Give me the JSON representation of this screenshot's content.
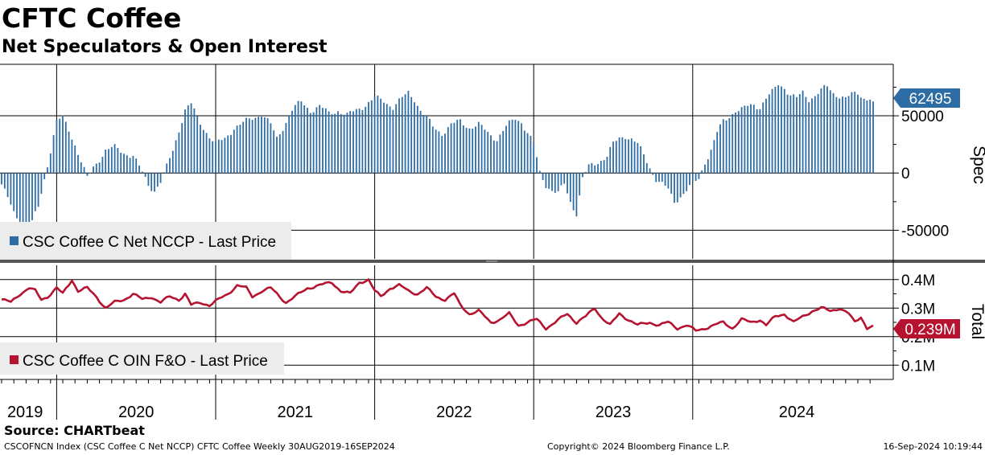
{
  "title": "CFTC Coffee",
  "subtitle": "Net Speculators & Open Interest",
  "source": "Source: CHARTbeat",
  "footer": {
    "left": "CSCOFNCN Index (CSC Coffee C Net NCCP) CFTC Coffee  Weekly 30AUG2019-16SEP2024",
    "center": "Copyright© 2024 Bloomberg Finance L.P.",
    "right": "16-Sep-2024 10:19:44"
  },
  "colors": {
    "spec": "#2e6ca4",
    "total": "#b5132f",
    "grid": "#000000",
    "legend_bg": "#ececec"
  },
  "chart_data": [
    {
      "type": "bar",
      "name": "spec",
      "title": "Spec",
      "legend": "CSC Coffee C Net NCCP - Last Price",
      "last_value_label": "62495",
      "ylim": [
        -75000,
        95000
      ],
      "yticks": [
        -50000,
        0,
        50000
      ],
      "ytick_labels": [
        "-50000",
        "0",
        "50000"
      ],
      "anchors": [
        [
          0,
          -10000
        ],
        [
          4,
          -35000
        ],
        [
          7,
          -45000
        ],
        [
          9,
          -50000
        ],
        [
          12,
          -30000
        ],
        [
          14,
          -5000
        ],
        [
          16,
          20000
        ],
        [
          18,
          45000
        ],
        [
          20,
          48000
        ],
        [
          22,
          38000
        ],
        [
          24,
          25000
        ],
        [
          26,
          10000
        ],
        [
          28,
          -5000
        ],
        [
          30,
          5000
        ],
        [
          34,
          20000
        ],
        [
          37,
          22000
        ],
        [
          40,
          18000
        ],
        [
          43,
          15000
        ],
        [
          45,
          5000
        ],
        [
          48,
          -10000
        ],
        [
          50,
          -15000
        ],
        [
          52,
          -8000
        ],
        [
          54,
          5000
        ],
        [
          56,
          20000
        ],
        [
          58,
          38000
        ],
        [
          60,
          55000
        ],
        [
          62,
          60000
        ],
        [
          64,
          48000
        ],
        [
          66,
          40000
        ],
        [
          68,
          32000
        ],
        [
          70,
          25000
        ],
        [
          73,
          30000
        ],
        [
          76,
          40000
        ],
        [
          78,
          42000
        ],
        [
          80,
          45000
        ],
        [
          82,
          48000
        ],
        [
          85,
          52000
        ],
        [
          88,
          42000
        ],
        [
          90,
          30000
        ],
        [
          92,
          40000
        ],
        [
          95,
          55000
        ],
        [
          98,
          62000
        ],
        [
          101,
          55000
        ],
        [
          104,
          58000
        ],
        [
          107,
          52000
        ],
        [
          110,
          55000
        ],
        [
          113,
          50000
        ],
        [
          116,
          55000
        ],
        [
          119,
          60000
        ],
        [
          122,
          65000
        ],
        [
          125,
          63000
        ],
        [
          128,
          58000
        ],
        [
          131,
          65000
        ],
        [
          133,
          70000
        ],
        [
          135,
          65000
        ],
        [
          137,
          55000
        ],
        [
          139,
          48000
        ],
        [
          141,
          40000
        ],
        [
          144,
          35000
        ],
        [
          147,
          42000
        ],
        [
          150,
          45000
        ],
        [
          153,
          40000
        ],
        [
          156,
          42000
        ],
        [
          159,
          35000
        ],
        [
          162,
          30000
        ],
        [
          165,
          40000
        ],
        [
          168,
          48000
        ],
        [
          170,
          45000
        ],
        [
          172,
          35000
        ],
        [
          174,
          25000
        ],
        [
          176,
          0
        ],
        [
          178,
          -10000
        ],
        [
          180,
          -15000
        ],
        [
          182,
          -18000
        ],
        [
          184,
          -10000
        ],
        [
          186,
          -25000
        ],
        [
          188,
          -35000
        ],
        [
          190,
          -5000
        ],
        [
          192,
          5000
        ],
        [
          195,
          10000
        ],
        [
          198,
          15000
        ],
        [
          200,
          25000
        ],
        [
          202,
          30000
        ],
        [
          204,
          33000
        ],
        [
          206,
          30000
        ],
        [
          208,
          25000
        ],
        [
          210,
          15000
        ],
        [
          212,
          5000
        ],
        [
          214,
          -5000
        ],
        [
          216,
          -10000
        ],
        [
          218,
          -15000
        ],
        [
          220,
          -25000
        ],
        [
          222,
          -20000
        ],
        [
          224,
          -15000
        ],
        [
          226,
          -10000
        ],
        [
          228,
          -5000
        ],
        [
          230,
          10000
        ],
        [
          232,
          20000
        ],
        [
          234,
          35000
        ],
        [
          236,
          45000
        ],
        [
          238,
          50000
        ],
        [
          240,
          55000
        ],
        [
          242,
          55000
        ],
        [
          244,
          58000
        ],
        [
          246,
          60000
        ],
        [
          248,
          58000
        ],
        [
          250,
          65000
        ],
        [
          252,
          70000
        ],
        [
          254,
          78000
        ],
        [
          256,
          75000
        ],
        [
          258,
          68000
        ],
        [
          260,
          65000
        ],
        [
          262,
          70000
        ],
        [
          264,
          65000
        ],
        [
          266,
          68000
        ],
        [
          268,
          72000
        ],
        [
          270,
          75000
        ],
        [
          272,
          70000
        ],
        [
          274,
          68000
        ],
        [
          276,
          65000
        ],
        [
          278,
          68000
        ],
        [
          280,
          70000
        ],
        [
          282,
          66000
        ],
        [
          284,
          65000
        ],
        [
          285,
          62495
        ]
      ]
    },
    {
      "type": "line",
      "name": "total",
      "title": "Total",
      "legend": "CSC Coffee C OIN F&O - Last Price",
      "last_value_label": "0.239M",
      "ylim": [
        0.05,
        0.45
      ],
      "yticks": [
        0.1,
        0.2,
        0.3,
        0.4
      ],
      "ytick_labels": [
        "0.1M",
        "0.2M",
        "0.3M",
        "0.4M"
      ],
      "anchors": [
        [
          0,
          0.33
        ],
        [
          3,
          0.32
        ],
        [
          6,
          0.35
        ],
        [
          9,
          0.37
        ],
        [
          11,
          0.36
        ],
        [
          13,
          0.33
        ],
        [
          15,
          0.34
        ],
        [
          18,
          0.37
        ],
        [
          20,
          0.35
        ],
        [
          23,
          0.4
        ],
        [
          25,
          0.36
        ],
        [
          28,
          0.37
        ],
        [
          31,
          0.34
        ],
        [
          34,
          0.3
        ],
        [
          37,
          0.32
        ],
        [
          40,
          0.33
        ],
        [
          43,
          0.35
        ],
        [
          46,
          0.33
        ],
        [
          49,
          0.34
        ],
        [
          52,
          0.32
        ],
        [
          55,
          0.34
        ],
        [
          58,
          0.33
        ],
        [
          60,
          0.35
        ],
        [
          62,
          0.31
        ],
        [
          65,
          0.32
        ],
        [
          68,
          0.31
        ],
        [
          71,
          0.33
        ],
        [
          74,
          0.35
        ],
        [
          77,
          0.38
        ],
        [
          80,
          0.37
        ],
        [
          82,
          0.34
        ],
        [
          85,
          0.36
        ],
        [
          88,
          0.37
        ],
        [
          90,
          0.35
        ],
        [
          93,
          0.32
        ],
        [
          96,
          0.34
        ],
        [
          100,
          0.37
        ],
        [
          104,
          0.38
        ],
        [
          108,
          0.39
        ],
        [
          111,
          0.36
        ],
        [
          114,
          0.35
        ],
        [
          117,
          0.39
        ],
        [
          120,
          0.4
        ],
        [
          122,
          0.36
        ],
        [
          124,
          0.34
        ],
        [
          127,
          0.37
        ],
        [
          130,
          0.38
        ],
        [
          133,
          0.36
        ],
        [
          136,
          0.35
        ],
        [
          139,
          0.37
        ],
        [
          142,
          0.34
        ],
        [
          145,
          0.33
        ],
        [
          148,
          0.35
        ],
        [
          150,
          0.31
        ],
        [
          153,
          0.28
        ],
        [
          156,
          0.29
        ],
        [
          160,
          0.25
        ],
        [
          163,
          0.26
        ],
        [
          166,
          0.28
        ],
        [
          169,
          0.24
        ],
        [
          172,
          0.25
        ],
        [
          175,
          0.26
        ],
        [
          178,
          0.23
        ],
        [
          181,
          0.25
        ],
        [
          185,
          0.28
        ],
        [
          188,
          0.25
        ],
        [
          191,
          0.27
        ],
        [
          194,
          0.3
        ],
        [
          196,
          0.27
        ],
        [
          199,
          0.24
        ],
        [
          202,
          0.28
        ],
        [
          205,
          0.26
        ],
        [
          208,
          0.24
        ],
        [
          212,
          0.25
        ],
        [
          215,
          0.24
        ],
        [
          218,
          0.25
        ],
        [
          221,
          0.23
        ],
        [
          224,
          0.24
        ],
        [
          227,
          0.22
        ],
        [
          230,
          0.23
        ],
        [
          233,
          0.24
        ],
        [
          236,
          0.25
        ],
        [
          239,
          0.23
        ],
        [
          242,
          0.26
        ],
        [
          245,
          0.25
        ],
        [
          248,
          0.26
        ],
        [
          250,
          0.24
        ],
        [
          253,
          0.27
        ],
        [
          256,
          0.28
        ],
        [
          259,
          0.25
        ],
        [
          262,
          0.27
        ],
        [
          265,
          0.29
        ],
        [
          268,
          0.3
        ],
        [
          271,
          0.29
        ],
        [
          274,
          0.3
        ],
        [
          277,
          0.28
        ],
        [
          279,
          0.25
        ],
        [
          281,
          0.27
        ],
        [
          283,
          0.23
        ],
        [
          285,
          0.239
        ]
      ]
    },
    {
      "type": "axis",
      "name": "time",
      "n_weeks": 286,
      "year_labels": [
        "2019",
        "2020",
        "2021",
        "2022",
        "2023",
        "2024"
      ],
      "year_starts_week": [
        0,
        18,
        70,
        122,
        174,
        226,
        278
      ]
    }
  ]
}
